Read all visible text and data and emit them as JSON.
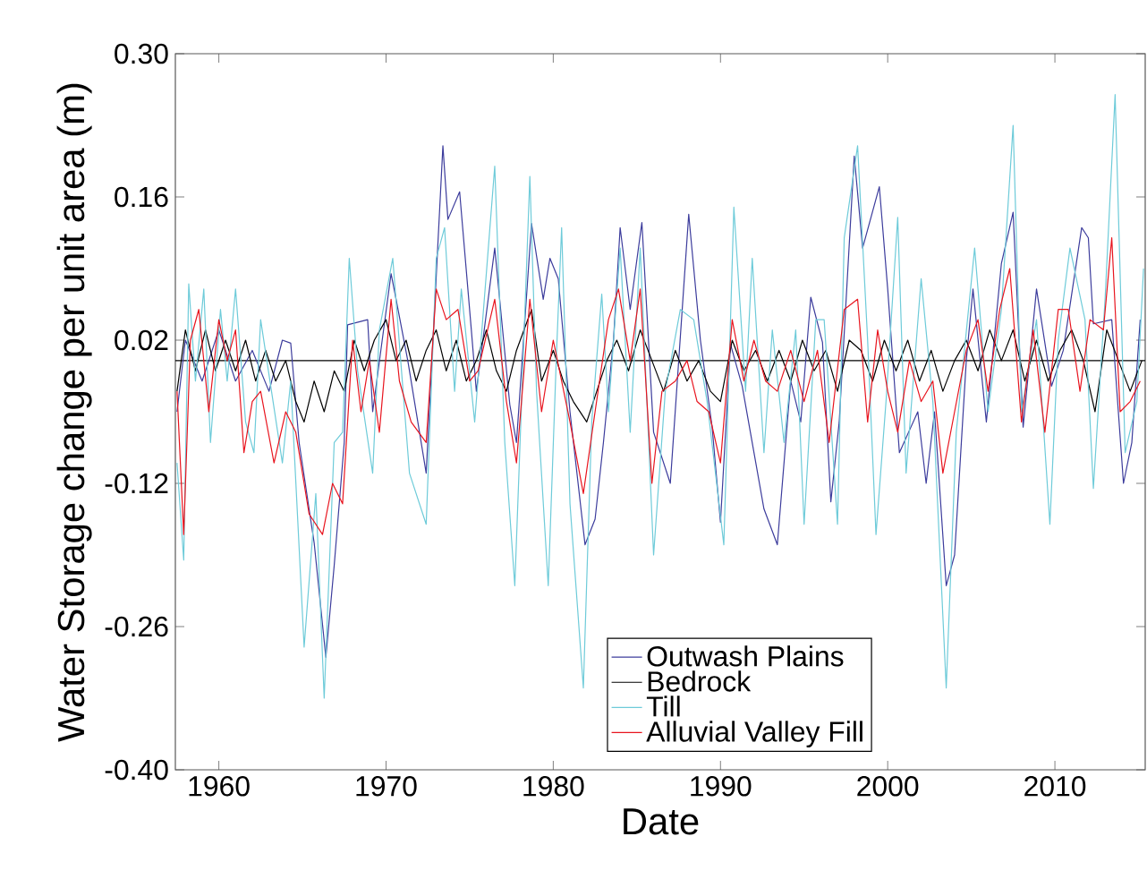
{
  "chart_data": {
    "type": "line",
    "xlabel": "Date",
    "ylabel": "Water Storage change per unit area (m)",
    "xlim": [
      1957.4,
      2015.4
    ],
    "xticks": [
      1960,
      1970,
      1980,
      1990,
      2000,
      2010
    ],
    "ylim": [
      -0.4,
      0.3
    ],
    "yticks": [
      {
        "value": -0.4,
        "label": "-0.40"
      },
      -0.26,
      -0.12,
      0.02,
      0.16,
      {
        "value": 0.3,
        "label": "0.30"
      }
    ],
    "legend": "bottom",
    "marker": "none",
    "line_style": "solid",
    "ref_lines": [
      {
        "axis": "y",
        "value": 0,
        "color": "#000000"
      }
    ],
    "series": [
      {
        "name": "Outwash Plains",
        "color": "#3c3c9c",
        "x": [
          1957.5,
          1958,
          1959,
          1960,
          1961,
          1962,
          1963,
          1963.8,
          1964.3,
          1964.8,
          1965.7,
          1966.4,
          1966.9,
          1967.5,
          1967.7,
          1968.9,
          1969.2,
          1970.3,
          1970.6,
          1971.3,
          1972.4,
          1973.4,
          1973.7,
          1974.4,
          1975.1,
          1975.4,
          1976.5,
          1977.4,
          1977.8,
          1978.7,
          1979.4,
          1979.8,
          1980.3,
          1981,
          1981.9,
          1982.5,
          1983,
          1983.6,
          1984,
          1984.6,
          1985.3,
          1986,
          1987,
          1988.1,
          1988.8,
          1989.5,
          1990,
          1990.6,
          1991.3,
          1992.6,
          1993.4,
          1994.2,
          1994.8,
          1995.4,
          1996.1,
          1996.6,
          1997.1,
          1998,
          1998.5,
          1999.5,
          2000,
          2000.7,
          2001.8,
          2002.3,
          2002.8,
          2003.5,
          2004,
          2004.7,
          2005.1,
          2005.9,
          2006.8,
          2007.5,
          2008.1,
          2008.9,
          2009.8,
          2010.5,
          2011.6,
          2012,
          2012.3,
          2013.4,
          2014.1,
          2014.6,
          2015.1
        ],
        "values": [
          -0.05,
          0.02,
          -0.02,
          0.03,
          -0.02,
          0.01,
          -0.03,
          0.02,
          0.017,
          -0.08,
          -0.178,
          -0.29,
          -0.2,
          -0.08,
          0.035,
          0.04,
          -0.05,
          0.085,
          0.06,
          0.0,
          -0.11,
          0.21,
          0.138,
          0.165,
          0.03,
          -0.03,
          0.11,
          -0.043,
          -0.08,
          0.134,
          0.06,
          0.1,
          0.08,
          -0.05,
          -0.18,
          -0.155,
          -0.08,
          0.02,
          0.13,
          0.05,
          0.135,
          -0.07,
          -0.12,
          0.143,
          0.02,
          -0.065,
          -0.158,
          0.016,
          -0.025,
          -0.145,
          -0.18,
          -0.02,
          -0.06,
          0.062,
          0.018,
          -0.138,
          -0.06,
          0.2,
          0.11,
          0.17,
          0.07,
          -0.09,
          -0.05,
          -0.12,
          -0.05,
          -0.22,
          -0.19,
          0.0,
          0.07,
          -0.06,
          0.095,
          0.145,
          -0.065,
          0.07,
          -0.025,
          0.01,
          0.13,
          0.12,
          0.036,
          0.04,
          -0.12,
          -0.08,
          0.04
        ]
      },
      {
        "name": "Bedrock",
        "color": "#000000",
        "x": [
          1957.5,
          1958,
          1958.6,
          1959.2,
          1959.8,
          1960.4,
          1961,
          1961.6,
          1962.2,
          1962.8,
          1963.4,
          1964,
          1964.6,
          1965.1,
          1965.7,
          1966.3,
          1966.9,
          1967.5,
          1968.1,
          1968.7,
          1969.3,
          1970,
          1970.6,
          1971.2,
          1971.8,
          1972.4,
          1973,
          1973.6,
          1974.2,
          1974.8,
          1975.4,
          1976,
          1976.6,
          1977.2,
          1977.8,
          1978.7,
          1979.3,
          1980,
          1980.6,
          1981.2,
          1982,
          1982.6,
          1983.2,
          1983.8,
          1984.5,
          1985.2,
          1985.9,
          1986.6,
          1987.3,
          1988,
          1988.7,
          1989.4,
          1990,
          1990.7,
          1991.4,
          1992.1,
          1992.8,
          1993.5,
          1994.2,
          1994.9,
          1995.6,
          1996.3,
          1997,
          1997.7,
          1998.4,
          1999.1,
          1999.8,
          2000.5,
          2001.2,
          2001.9,
          2002.6,
          2003.3,
          2004,
          2004.7,
          2005.4,
          2006.1,
          2006.8,
          2007.5,
          2008.2,
          2008.9,
          2009.6,
          2010.3,
          2011,
          2011.7,
          2012.4,
          2013.1,
          2013.8,
          2014.5,
          2015.2
        ],
        "values": [
          -0.03,
          0.03,
          -0.01,
          0.03,
          -0.01,
          0.02,
          -0.01,
          0.02,
          -0.02,
          0.01,
          -0.02,
          0.0,
          -0.04,
          -0.06,
          -0.02,
          -0.05,
          -0.01,
          -0.03,
          0.02,
          -0.01,
          0.02,
          0.04,
          0.0,
          0.02,
          -0.02,
          0.01,
          0.03,
          -0.01,
          0.02,
          -0.02,
          0.0,
          0.03,
          -0.01,
          -0.03,
          0.01,
          0.05,
          -0.02,
          0.01,
          -0.02,
          -0.04,
          -0.06,
          -0.03,
          0.0,
          0.02,
          -0.01,
          0.03,
          0.0,
          -0.03,
          0.01,
          -0.02,
          0.0,
          -0.03,
          -0.04,
          0.02,
          -0.01,
          0.01,
          -0.02,
          0.01,
          -0.02,
          0.02,
          -0.01,
          0.01,
          -0.03,
          0.02,
          0.01,
          -0.02,
          0.02,
          -0.01,
          0.02,
          -0.02,
          0.01,
          -0.03,
          0.0,
          0.02,
          -0.01,
          0.03,
          0.0,
          0.03,
          -0.02,
          0.02,
          -0.02,
          0.01,
          0.03,
          0.0,
          -0.05,
          0.03,
          0.0,
          -0.03,
          0.0
        ]
      },
      {
        "name": "Till",
        "color": "#6ecbd9",
        "x": [
          1957.5,
          1957.9,
          1958.2,
          1958.6,
          1959.1,
          1959.5,
          1960.1,
          1960.5,
          1961,
          1961.6,
          1962.1,
          1962.5,
          1963.8,
          1964.3,
          1965.1,
          1965.8,
          1966.3,
          1966.9,
          1967.4,
          1967.8,
          1968.3,
          1969.2,
          1969.6,
          1970.4,
          1971.4,
          1972.4,
          1973,
          1973.5,
          1974.1,
          1974.5,
          1975.3,
          1976.5,
          1977.1,
          1977.7,
          1978.6,
          1979,
          1979.7,
          1980.2,
          1980.5,
          1981,
          1981.8,
          1982.3,
          1982.9,
          1983.3,
          1984,
          1984.6,
          1985.2,
          1986,
          1986.7,
          1987.6,
          1988.4,
          1989.2,
          1990.2,
          1990.8,
          1991.5,
          1991.9,
          1992.6,
          1993.1,
          1993.8,
          1994.5,
          1995,
          1995.7,
          1996.2,
          1997,
          1997.4,
          1998.2,
          1998.8,
          1999.3,
          1999.9,
          2000.6,
          2001.1,
          2002,
          2002.7,
          2003.5,
          2004.1,
          2005.2,
          2006,
          2006.8,
          2007.5,
          2008,
          2008.9,
          2009.7,
          2010.2,
          2010.9,
          2011.8,
          2012.3,
          2013,
          2013.6,
          2014.2,
          2014.9,
          2015.3
        ],
        "values": [
          -0.1,
          -0.195,
          0.075,
          -0.02,
          0.07,
          -0.08,
          0.05,
          -0.02,
          0.07,
          -0.06,
          -0.09,
          0.04,
          -0.1,
          -0.02,
          -0.28,
          -0.13,
          -0.33,
          -0.08,
          -0.07,
          0.1,
          -0.01,
          -0.11,
          0.03,
          0.1,
          -0.11,
          -0.16,
          0.1,
          0.13,
          -0.03,
          0.07,
          -0.06,
          0.19,
          -0.08,
          -0.22,
          0.18,
          -0.03,
          -0.22,
          0.01,
          0.13,
          -0.14,
          -0.32,
          -0.06,
          0.065,
          -0.05,
          0.11,
          -0.07,
          0.11,
          -0.19,
          -0.03,
          0.05,
          0.04,
          -0.04,
          -0.18,
          0.15,
          -0.03,
          0.1,
          -0.09,
          0.03,
          -0.08,
          0.03,
          -0.16,
          0.04,
          0.04,
          -0.16,
          0.12,
          0.21,
          0.02,
          -0.17,
          -0.04,
          0.14,
          -0.11,
          0.08,
          -0.04,
          -0.32,
          -0.07,
          0.11,
          -0.05,
          0.05,
          0.23,
          -0.05,
          0.04,
          -0.16,
          0.02,
          0.11,
          0.04,
          -0.125,
          0.06,
          0.26,
          -0.09,
          -0.04,
          0.09
        ]
      },
      {
        "name": "Alluvial Valley Fill",
        "color": "#e8141e",
        "x": [
          1957.5,
          1957.9,
          1958.3,
          1958.8,
          1959.4,
          1960,
          1960.5,
          1961,
          1961.5,
          1962,
          1962.5,
          1963.3,
          1964,
          1964.6,
          1965.4,
          1966.2,
          1966.8,
          1967.4,
          1968,
          1968.5,
          1969,
          1969.6,
          1970.3,
          1970.8,
          1971.5,
          1972.4,
          1973,
          1973.6,
          1974.3,
          1975,
          1975.5,
          1976.5,
          1977.2,
          1977.8,
          1978.6,
          1979.3,
          1980,
          1980.5,
          1981,
          1981.8,
          1982.5,
          1983.3,
          1983.9,
          1984.6,
          1985.2,
          1985.9,
          1986.5,
          1987.3,
          1988,
          1988.6,
          1989.3,
          1990,
          1990.7,
          1991.4,
          1992,
          1992.7,
          1993.4,
          1994.2,
          1995,
          1995.8,
          1996.5,
          1997.4,
          1998.2,
          1998.8,
          1999.4,
          2000,
          2000.6,
          2001.3,
          2002,
          2002.7,
          2003.3,
          2004,
          2004.7,
          2005.4,
          2006,
          2006.7,
          2007.3,
          2008,
          2008.7,
          2009.4,
          2010.2,
          2010.8,
          2011.5,
          2012.1,
          2012.9,
          2013.4,
          2013.9,
          2014.5,
          2015.1
        ],
        "values": [
          -0.03,
          -0.17,
          0.02,
          0.05,
          -0.05,
          0.04,
          0.0,
          0.03,
          -0.09,
          -0.04,
          -0.03,
          -0.1,
          -0.05,
          -0.07,
          -0.15,
          -0.17,
          -0.12,
          -0.14,
          0.02,
          -0.05,
          0.0,
          -0.07,
          0.06,
          -0.02,
          -0.06,
          -0.08,
          0.07,
          0.04,
          0.05,
          -0.02,
          -0.01,
          0.06,
          -0.04,
          -0.1,
          0.06,
          -0.05,
          0.02,
          -0.02,
          -0.06,
          -0.13,
          -0.05,
          0.04,
          0.07,
          0.0,
          0.07,
          -0.12,
          -0.03,
          -0.02,
          0.0,
          -0.04,
          -0.05,
          -0.1,
          0.04,
          -0.02,
          0.02,
          -0.02,
          -0.03,
          0.01,
          -0.04,
          0.01,
          -0.08,
          0.05,
          0.06,
          -0.06,
          0.03,
          -0.03,
          -0.07,
          0.0,
          -0.04,
          -0.02,
          -0.11,
          -0.05,
          0.01,
          0.04,
          -0.03,
          0.05,
          0.09,
          -0.06,
          0.03,
          -0.07,
          0.05,
          0.05,
          -0.03,
          0.04,
          0.03,
          0.12,
          -0.05,
          -0.04,
          -0.02
        ]
      }
    ]
  }
}
